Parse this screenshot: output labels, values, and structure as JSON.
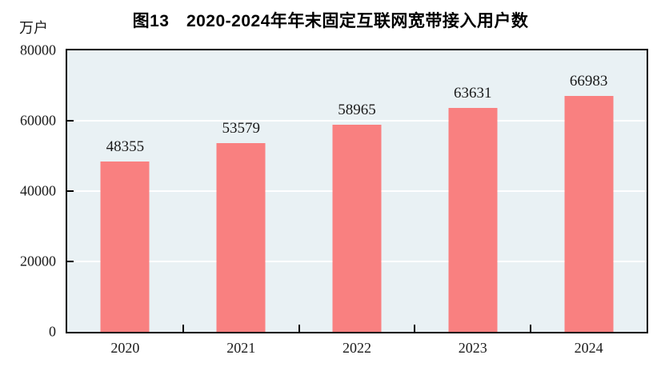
{
  "chart_data": {
    "type": "bar",
    "title": "图13　2020-2024年年末固定互联网宽带接入用户数",
    "unit_label": "万户",
    "categories": [
      "2020",
      "2021",
      "2022",
      "2023",
      "2024"
    ],
    "values": [
      48355,
      53579,
      58965,
      63631,
      66983
    ],
    "xlabel": "",
    "ylabel": "万户",
    "ylim": [
      0,
      80000
    ],
    "yticks": [
      0,
      20000,
      40000,
      60000,
      80000
    ],
    "grid": "horizontal-white-lines",
    "legend": "none",
    "data_labels": "above-bars",
    "tick_direction": "in",
    "colors": {
      "bar": "#f98080",
      "plot_background": "#e9f1f4",
      "grid_line": "#ffffff",
      "axis_border": "#000000",
      "text": "#1a1a1a"
    }
  }
}
